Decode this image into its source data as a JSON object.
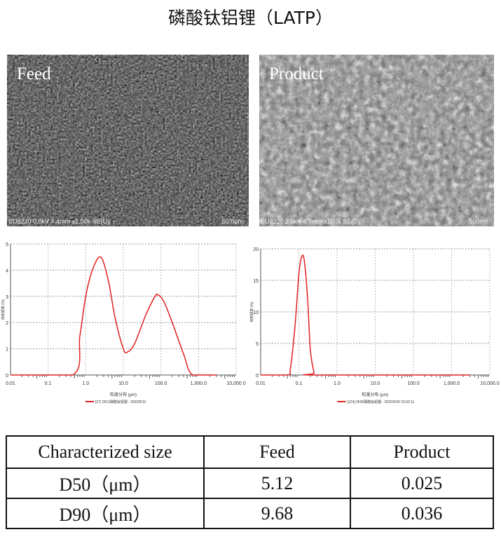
{
  "title": "磷酸钛铝锂（LATP）",
  "sem_images": [
    {
      "label": "Feed",
      "info": "SU8220 0.0kV 4.4mm x1.00k SE(U)",
      "scale": "50.0μm"
    },
    {
      "label": "Product",
      "info": "SU8220 2.0kV 4.9mm x100k SE(U)",
      "scale": "500nm"
    }
  ],
  "chart_data": [
    {
      "type": "line",
      "xscale": "log",
      "xlim": [
        0.01,
        10000
      ],
      "ylim": [
        0,
        5
      ],
      "grid": true,
      "x_ticks": [
        "0.01",
        "0.1",
        "1.0",
        "10.0",
        "100.0",
        "1,000.0",
        "10,000.0"
      ],
      "y_ticks": [
        "0",
        "1",
        "2",
        "3",
        "4",
        "5"
      ],
      "xlabel": "粒度分布 (μm)",
      "ylabel": "体积频率 (%)",
      "legend": "[27] 0512磷酸钛铝锂 - 2022/5/12",
      "color": "#e02020",
      "series": [
        {
          "x": [
            0.01,
            0.45,
            0.7,
            1.0,
            1.5,
            2.5,
            4,
            6,
            10,
            13,
            20,
            40,
            70,
            85,
            120,
            200,
            400,
            700,
            3000
          ],
          "y": [
            0,
            0,
            1.5,
            3.0,
            4.0,
            4.5,
            3.6,
            2.2,
            1.0,
            0.88,
            1.2,
            2.3,
            3.0,
            3.05,
            2.8,
            2.0,
            0.8,
            0,
            0
          ]
        }
      ]
    },
    {
      "type": "line",
      "xscale": "log",
      "xlim": [
        0.01,
        10000
      ],
      "ylim": [
        0,
        20
      ],
      "grid": true,
      "x_ticks": [
        "0.01",
        "0.1",
        "1.0",
        "10.0",
        "100.0",
        "1,000.0",
        "10,000.0"
      ],
      "y_ticks": [
        "0",
        "5",
        "10",
        "15",
        "20"
      ],
      "xlabel": "粒度分布 (μm)",
      "ylabel": "体积频率 (%)",
      "legend": "[124] 0530磷酸钛铝锂 - 2022/5/30 15:02:11",
      "color": "#e02020",
      "series": [
        {
          "x": [
            0.01,
            0.05,
            0.06,
            0.08,
            0.1,
            0.12,
            0.14,
            0.17,
            0.2,
            0.25,
            0.27,
            3000
          ],
          "y": [
            0,
            0,
            1,
            8,
            16,
            18.8,
            18,
            12,
            4,
            0.3,
            0,
            0
          ]
        }
      ]
    }
  ],
  "table": {
    "headers": [
      "Characterized size",
      "Feed",
      "Product"
    ],
    "rows": [
      [
        "D50（μm）",
        "5.12",
        "0.025"
      ],
      [
        "D90（μm）",
        "9.68",
        "0.036"
      ]
    ]
  }
}
